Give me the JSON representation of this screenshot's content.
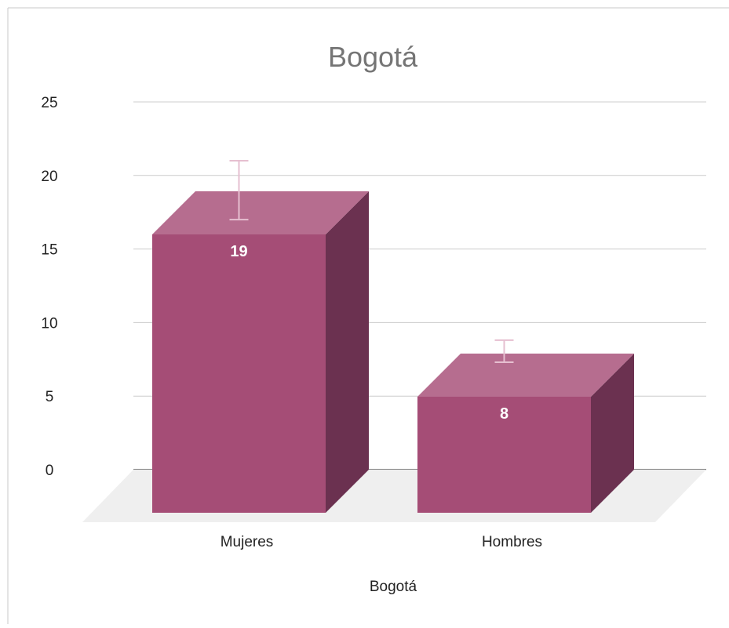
{
  "chart_data": {
    "type": "bar",
    "title": "Bogotá",
    "xlabel": "Bogotá",
    "ylabel": "",
    "categories": [
      "Mujeres",
      "Hombres"
    ],
    "values": [
      19,
      8
    ],
    "data_labels": [
      "19",
      "8"
    ],
    "error_bars": [
      [
        17,
        21
      ],
      [
        7.3,
        8.8
      ]
    ],
    "ylim": [
      0,
      25
    ],
    "yticks": [
      0,
      5,
      10,
      15,
      20,
      25
    ],
    "ytick_labels": [
      "0",
      "5",
      "10",
      "15",
      "20",
      "25"
    ],
    "grid": true,
    "legend": "none",
    "colors": {
      "bar_front": "#a54d76",
      "bar_top": "#b66d8f",
      "bar_side": "#6b3150",
      "floor": "#efefef",
      "error_bar": "#e6bfd0",
      "gridline": "#cccccc",
      "title": "#757575",
      "text": "#222222"
    }
  }
}
